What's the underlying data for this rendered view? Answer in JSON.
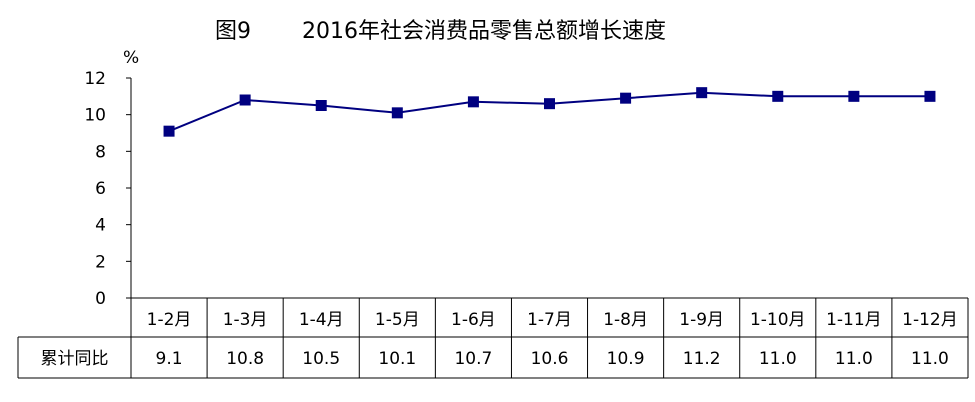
{
  "header": {
    "figure_label": "图9",
    "title": "2016年社会消费品零售总额增长速度"
  },
  "chart_data": {
    "type": "line",
    "title": "2016年社会消费品零售总额增长速度",
    "xlabel": "",
    "ylabel": "%",
    "ylim": [
      0,
      12
    ],
    "yticks": [
      "0",
      "2",
      "4",
      "6",
      "8",
      "10",
      "12"
    ],
    "grid": false,
    "categories": [
      "1-2月",
      "1-3月",
      "1-4月",
      "1-5月",
      "1-6月",
      "1-7月",
      "1-8月",
      "1-9月",
      "1-10月",
      "1-11月",
      "1-12月"
    ],
    "series": [
      {
        "name": "累计同比",
        "values": [
          9.1,
          10.8,
          10.5,
          10.1,
          10.7,
          10.6,
          10.9,
          11.2,
          11.0,
          11.0,
          11.0
        ],
        "value_labels": [
          "9.1",
          "10.8",
          "10.5",
          "10.1",
          "10.7",
          "10.6",
          "10.9",
          "11.2",
          "11.0",
          "11.0",
          "11.0"
        ],
        "color": "#000080"
      }
    ]
  },
  "table": {
    "row_header": "累计同比"
  }
}
